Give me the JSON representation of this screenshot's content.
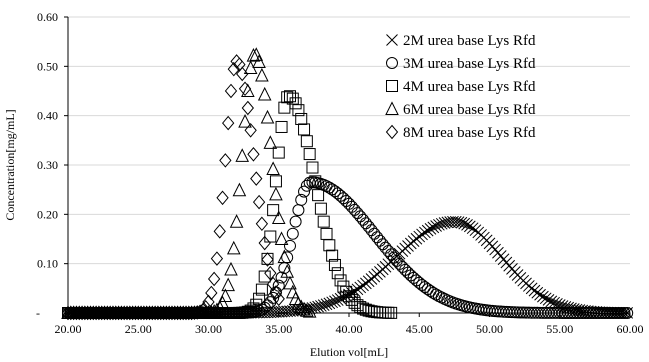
{
  "chart_data": {
    "type": "scatter",
    "xlabel": "Elution vol[mL]",
    "ylabel": "Concentration[mg/mL]",
    "xlim": [
      20,
      60
    ],
    "ylim": [
      0,
      0.6
    ],
    "x_ticks": [
      "20.00",
      "25.00",
      "30.00",
      "35.00",
      "40.00",
      "45.00",
      "50.00",
      "55.00",
      "60.00"
    ],
    "y_ticks": [
      "-",
      "0.10",
      "0.20",
      "0.30",
      "0.40",
      "0.50",
      "0.60"
    ],
    "legend_position": "top-right",
    "series": [
      {
        "name": "2M urea base Lys Rfd",
        "marker": "x-mark",
        "peak_x": 47.5,
        "peak_y": 0.185,
        "sigma_left": 4.2,
        "sigma_right": 3.4,
        "x_start": 20.0,
        "x_end": 59.8,
        "x_step": 0.2
      },
      {
        "name": "3M urea base Lys Rfd",
        "marker": "circle",
        "peak_x": 37.3,
        "peak_y": 0.265,
        "sigma_left": 1.3,
        "sigma_right": 4.5,
        "x_start": 20.0,
        "x_end": 59.8,
        "x_step": 0.2
      },
      {
        "name": "4M urea base Lys Rfd",
        "marker": "square",
        "peak_x": 35.7,
        "peak_y": 0.44,
        "sigma_left": 0.9,
        "sigma_right": 1.9,
        "x_start": 20.0,
        "x_end": 43.0,
        "x_step": 0.2
      },
      {
        "name": "6M urea base Lys Rfd",
        "marker": "triangle",
        "peak_x": 33.3,
        "peak_y": 0.525,
        "sigma_left": 0.9,
        "sigma_right": 1.2,
        "x_start": 20.0,
        "x_end": 37.2,
        "x_step": 0.2
      },
      {
        "name": "8M urea base Lys Rfd",
        "marker": "diamond",
        "peak_x": 32.0,
        "peak_y": 0.51,
        "sigma_left": 0.8,
        "sigma_right": 1.25,
        "x_start": 20.0,
        "x_end": 35.0,
        "x_step": 0.2
      }
    ]
  }
}
